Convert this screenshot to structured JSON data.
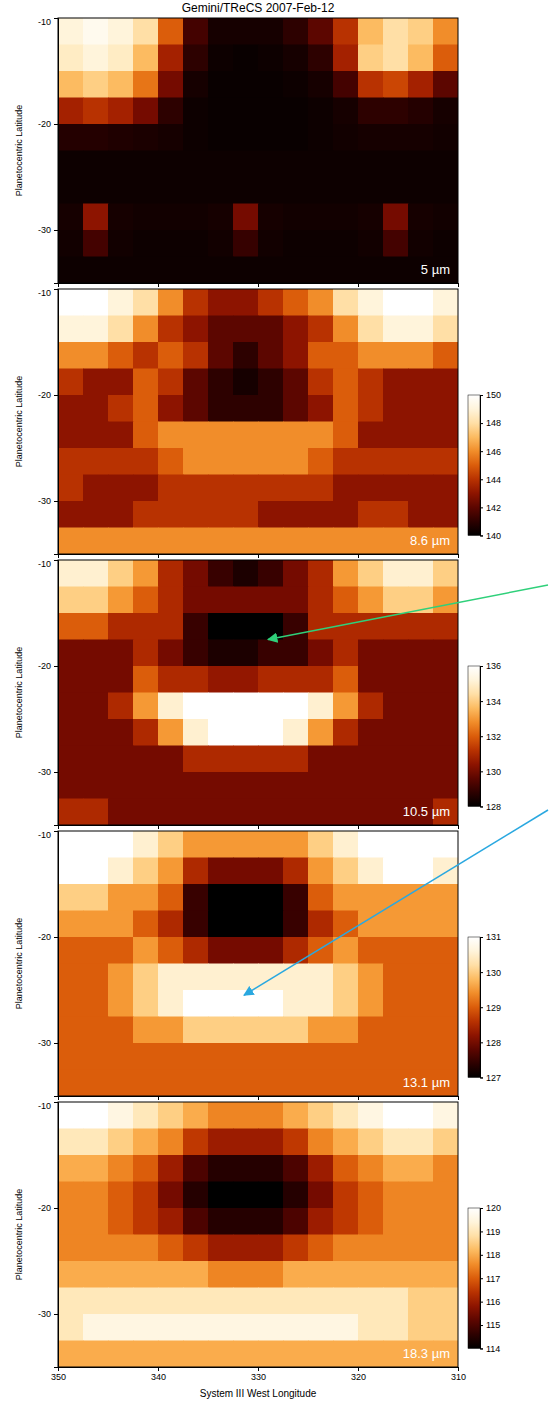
{
  "title": "Gemini/TReCS 2007-Feb-12",
  "chart_data": [
    {
      "type": "heatmap",
      "label": "5 µm",
      "ylabel": "Planetocentric Latitude",
      "x": [
        348.75,
        346.25,
        343.75,
        341.25,
        338.75,
        336.25,
        333.75,
        331.25,
        328.75,
        326.25,
        323.75,
        321.25,
        318.75,
        316.25,
        313.75,
        311.25
      ],
      "y": [
        -11.25,
        -13.75,
        -16.25,
        -18.75,
        -21.25,
        -23.75,
        -26.25,
        -28.75,
        -31.25,
        -33.75
      ],
      "xlim": [
        350,
        310
      ],
      "xticks": [
        350,
        340,
        330,
        320,
        310
      ],
      "ylim": [
        -35,
        -10
      ],
      "yticks": [
        -10,
        -20,
        -30
      ],
      "tick_labels": "y",
      "zlim": [
        0,
        1
      ],
      "z": [
        [
          0.9,
          0.95,
          0.9,
          0.8,
          0.5,
          0.15,
          0.05,
          0.05,
          0.05,
          0.1,
          0.2,
          0.4,
          0.7,
          0.8,
          0.75,
          0.6
        ],
        [
          0.85,
          0.9,
          0.85,
          0.7,
          0.35,
          0.1,
          0.03,
          0.02,
          0.03,
          0.05,
          0.1,
          0.35,
          0.75,
          0.8,
          0.7,
          0.5
        ],
        [
          0.7,
          0.75,
          0.7,
          0.55,
          0.25,
          0.05,
          0.02,
          0.02,
          0.02,
          0.03,
          0.05,
          0.15,
          0.4,
          0.45,
          0.35,
          0.2
        ],
        [
          0.35,
          0.4,
          0.35,
          0.25,
          0.1,
          0.03,
          0.02,
          0.02,
          0.02,
          0.02,
          0.03,
          0.05,
          0.1,
          0.1,
          0.08,
          0.05
        ],
        [
          0.08,
          0.08,
          0.07,
          0.06,
          0.05,
          0.03,
          0.02,
          0.02,
          0.02,
          0.02,
          0.03,
          0.04,
          0.05,
          0.05,
          0.05,
          0.04
        ],
        [
          0.03,
          0.03,
          0.03,
          0.03,
          0.03,
          0.03,
          0.03,
          0.03,
          0.03,
          0.03,
          0.03,
          0.03,
          0.03,
          0.03,
          0.03,
          0.03
        ],
        [
          0.03,
          0.03,
          0.03,
          0.03,
          0.03,
          0.03,
          0.03,
          0.03,
          0.03,
          0.03,
          0.03,
          0.03,
          0.03,
          0.03,
          0.03,
          0.03
        ],
        [
          0.05,
          0.3,
          0.05,
          0.04,
          0.04,
          0.04,
          0.05,
          0.25,
          0.05,
          0.04,
          0.04,
          0.04,
          0.05,
          0.25,
          0.05,
          0.04
        ],
        [
          0.04,
          0.15,
          0.04,
          0.03,
          0.03,
          0.03,
          0.04,
          0.12,
          0.04,
          0.03,
          0.03,
          0.03,
          0.04,
          0.15,
          0.04,
          0.03
        ],
        [
          0.03,
          0.03,
          0.03,
          0.03,
          0.03,
          0.03,
          0.03,
          0.03,
          0.03,
          0.03,
          0.03,
          0.03,
          0.03,
          0.03,
          0.03,
          0.03
        ]
      ]
    },
    {
      "type": "heatmap",
      "label": "8.6 µm",
      "ylabel": "Planetocentric Latitude",
      "x": [
        348.75,
        346.25,
        343.75,
        341.25,
        338.75,
        336.25,
        333.75,
        331.25,
        328.75,
        326.25,
        323.75,
        321.25,
        318.75,
        316.25,
        313.75,
        311.25
      ],
      "y": [
        -11.25,
        -13.75,
        -16.25,
        -18.75,
        -21.25,
        -23.75,
        -26.25,
        -28.75,
        -31.25,
        -33.75
      ],
      "xlim": [
        350,
        310
      ],
      "xticks": [
        350,
        340,
        330,
        320,
        310
      ],
      "ylim": [
        -35,
        -10
      ],
      "yticks": [
        -10,
        -20,
        -30
      ],
      "tick_labels": "y",
      "zlim": [
        140,
        150
      ],
      "zticks": [
        140,
        142,
        144,
        146,
        148,
        150
      ],
      "z": [
        [
          150,
          150,
          149,
          148,
          146,
          144,
          143,
          143,
          144,
          145,
          146,
          148,
          149,
          150,
          150,
          149
        ],
        [
          149,
          149,
          148,
          146,
          144,
          143,
          142,
          142,
          142,
          143,
          144,
          146,
          148,
          149,
          149,
          148
        ],
        [
          146,
          146,
          145,
          144,
          145,
          144,
          142,
          141,
          142,
          143,
          145,
          145,
          146,
          146,
          146,
          145
        ],
        [
          144,
          143,
          143,
          145,
          144,
          142,
          141,
          140.5,
          141,
          142,
          144,
          145,
          144,
          143,
          143,
          143
        ],
        [
          143,
          143,
          144,
          145,
          143,
          142,
          141,
          141,
          141,
          142,
          143,
          145,
          144,
          143,
          143,
          143
        ],
        [
          143,
          143,
          143,
          145,
          146,
          146,
          146,
          146,
          146,
          146,
          146,
          145,
          143,
          143,
          143,
          143
        ],
        [
          144,
          144,
          144,
          144,
          145,
          146,
          146,
          146,
          146,
          146,
          145,
          144,
          144,
          144,
          144,
          144
        ],
        [
          144,
          143,
          143,
          143,
          144,
          144,
          144,
          144,
          144,
          144,
          144,
          143,
          143,
          143,
          143,
          143
        ],
        [
          143,
          143,
          143,
          144,
          144,
          144,
          144,
          144,
          143,
          143,
          143,
          143,
          144,
          144,
          143,
          143
        ],
        [
          146,
          146,
          146,
          146,
          146,
          146,
          146,
          146,
          146,
          146,
          146,
          146,
          146,
          146,
          146,
          146
        ]
      ]
    },
    {
      "type": "heatmap",
      "label": "10.5 µm",
      "ylabel": "Planetocentric Latitude",
      "x": [
        348.75,
        346.25,
        343.75,
        341.25,
        338.75,
        336.25,
        333.75,
        331.25,
        328.75,
        326.25,
        323.75,
        321.25,
        318.75,
        316.25,
        313.75,
        311.25
      ],
      "y": [
        -11.25,
        -13.75,
        -16.25,
        -18.75,
        -21.25,
        -23.75,
        -26.25,
        -28.75,
        -31.25,
        -33.75
      ],
      "xlim": [
        350,
        310
      ],
      "xticks": [
        350,
        340,
        330,
        320,
        310
      ],
      "ylim": [
        -35,
        -10
      ],
      "yticks": [
        -10,
        -20,
        -30
      ],
      "tick_labels": "y",
      "zlim": [
        128,
        136
      ],
      "zticks": [
        128,
        130,
        132,
        134,
        136
      ],
      "z": [
        [
          135,
          135,
          134,
          133,
          131,
          130,
          129,
          128.5,
          129,
          130,
          131,
          133,
          134,
          135,
          135,
          134
        ],
        [
          134,
          134,
          133,
          132,
          131,
          130,
          130,
          130,
          130,
          130,
          131,
          132,
          133,
          134,
          134,
          133
        ],
        [
          132,
          132,
          131,
          131,
          131,
          129,
          128,
          128,
          128,
          129,
          131,
          131,
          131,
          131,
          131,
          131
        ],
        [
          130,
          130,
          130,
          131,
          130,
          129,
          128.5,
          128.5,
          129,
          129,
          130,
          131,
          130,
          130,
          130,
          130
        ],
        [
          130,
          130,
          130,
          132,
          131,
          131,
          130.5,
          130.5,
          131,
          131,
          131,
          132,
          130,
          130,
          130,
          130
        ],
        [
          130,
          130,
          131,
          133,
          135,
          136,
          136,
          136,
          136,
          136,
          135,
          133,
          131,
          130,
          130,
          130
        ],
        [
          130,
          130,
          130,
          131,
          133,
          135,
          136,
          136,
          136,
          135,
          133,
          131,
          130,
          130,
          130,
          130
        ],
        [
          130,
          130,
          130,
          130,
          130,
          131,
          131,
          131,
          131,
          131,
          130,
          130,
          130,
          130,
          130,
          130
        ],
        [
          130,
          130,
          130,
          130,
          130,
          130,
          130,
          130,
          130,
          130,
          130,
          130,
          130,
          130,
          130,
          130
        ],
        [
          131,
          131,
          130,
          130,
          130,
          130,
          130,
          130,
          130,
          130,
          130,
          130,
          130,
          130,
          130,
          131
        ]
      ]
    },
    {
      "type": "heatmap",
      "label": "13.1 µm",
      "ylabel": "Planetocentric Latitude",
      "x": [
        348.75,
        346.25,
        343.75,
        341.25,
        338.75,
        336.25,
        333.75,
        331.25,
        328.75,
        326.25,
        323.75,
        321.25,
        318.75,
        316.25,
        313.75,
        311.25
      ],
      "y": [
        -11.25,
        -13.75,
        -16.25,
        -18.75,
        -21.25,
        -23.75,
        -26.25,
        -28.75,
        -31.25,
        -33.75
      ],
      "xlim": [
        350,
        310
      ],
      "xticks": [
        350,
        340,
        330,
        320,
        310
      ],
      "ylim": [
        -35,
        -10
      ],
      "yticks": [
        -10,
        -20,
        -30
      ],
      "tick_labels": "y",
      "zlim": [
        127,
        131
      ],
      "zticks": [
        127,
        128,
        129,
        130,
        131
      ],
      "z": [
        [
          131,
          131,
          131,
          130.5,
          130,
          129.5,
          129.5,
          129.5,
          129.5,
          129.5,
          130,
          130.5,
          131,
          131,
          131,
          131
        ],
        [
          131,
          131,
          130.5,
          130,
          129.5,
          128.5,
          128,
          128,
          128,
          128.5,
          129.5,
          130,
          130.5,
          131,
          131,
          130.5
        ],
        [
          130,
          130,
          129.5,
          129.5,
          129,
          127.5,
          127,
          127,
          127,
          127.5,
          129,
          129.5,
          129.5,
          129.5,
          129.5,
          129.5
        ],
        [
          129.5,
          129.5,
          129.5,
          129,
          128.5,
          127.5,
          127,
          127,
          127,
          127.5,
          128.5,
          129,
          129.5,
          129.5,
          129.5,
          129.5
        ],
        [
          129,
          129,
          129,
          129.5,
          129,
          128.5,
          128,
          128,
          128,
          128.5,
          129,
          129.5,
          129,
          129,
          129,
          129
        ],
        [
          129,
          129,
          129.5,
          130,
          130.5,
          130.5,
          130.5,
          130.5,
          130.5,
          130.5,
          130.5,
          130,
          129.5,
          129,
          129,
          129
        ],
        [
          129,
          129,
          129.5,
          130,
          130.5,
          131,
          131,
          131,
          131,
          130.5,
          130.5,
          130,
          129.5,
          129,
          129,
          129
        ],
        [
          129,
          129,
          129,
          129.5,
          129.5,
          130,
          130,
          130,
          130,
          130,
          129.5,
          129.5,
          129,
          129,
          129,
          129
        ],
        [
          129,
          129,
          129,
          129,
          129,
          129,
          129,
          129,
          129,
          129,
          129,
          129,
          129,
          129,
          129,
          129
        ],
        [
          129,
          129,
          129,
          129,
          129,
          129,
          129,
          129,
          129,
          129,
          129,
          129,
          129,
          129,
          129,
          129
        ]
      ]
    },
    {
      "type": "heatmap",
      "label": "18.3 µm",
      "ylabel": "Planetocentric Latitude",
      "xlabel": "System III West Longitude",
      "x": [
        348.75,
        346.25,
        343.75,
        341.25,
        338.75,
        336.25,
        333.75,
        331.25,
        328.75,
        326.25,
        323.75,
        321.25,
        318.75,
        316.25,
        313.75,
        311.25
      ],
      "y": [
        -11.25,
        -13.75,
        -16.25,
        -18.75,
        -21.25,
        -23.75,
        -26.25,
        -28.75,
        -31.25,
        -33.75
      ],
      "xlim": [
        350,
        310
      ],
      "xticks": [
        350,
        340,
        330,
        320,
        310
      ],
      "ylim": [
        -35,
        -10
      ],
      "yticks": [
        -10,
        -20,
        -30
      ],
      "zlim": [
        114,
        120
      ],
      "zticks": [
        114,
        115,
        116,
        117,
        118,
        119,
        120
      ],
      "z": [
        [
          120,
          120,
          119.5,
          119,
          118.5,
          118,
          117.5,
          117.5,
          117.5,
          118,
          118.5,
          119,
          119.5,
          120,
          120,
          119.5
        ],
        [
          119,
          119,
          118.5,
          118,
          117.5,
          116.5,
          116,
          116,
          116,
          116.5,
          117.5,
          118,
          118.5,
          119,
          119,
          118.5
        ],
        [
          118,
          118,
          117.5,
          117,
          116,
          115,
          114.5,
          114.5,
          114.5,
          115,
          116,
          117,
          117.5,
          118,
          118,
          117.5
        ],
        [
          117.5,
          117.5,
          117,
          116.5,
          115.5,
          114.5,
          114,
          114,
          114,
          114.5,
          115.5,
          116.5,
          117,
          117.5,
          117.5,
          117.5
        ],
        [
          117.5,
          117.5,
          117,
          116.5,
          116,
          115,
          114.5,
          114.5,
          114.5,
          115,
          116,
          116.5,
          117,
          117.5,
          117.5,
          117.5
        ],
        [
          117.5,
          117.5,
          117.5,
          117.5,
          117,
          116.5,
          116,
          116,
          116,
          116.5,
          117,
          117.5,
          117.5,
          117.5,
          117.5,
          117.5
        ],
        [
          118,
          118,
          118,
          118,
          118,
          118,
          117.5,
          117.5,
          117.5,
          118,
          118,
          118,
          118,
          118,
          118,
          118
        ],
        [
          119,
          119,
          119,
          119,
          119,
          119,
          119,
          119,
          119,
          119,
          119,
          119,
          119,
          119,
          118.5,
          118.5
        ],
        [
          119,
          119.5,
          119.5,
          119.5,
          119.5,
          119.5,
          119.5,
          119.5,
          119.5,
          119.5,
          119.5,
          119.5,
          119,
          119,
          118.5,
          118.5
        ],
        [
          118,
          118,
          118,
          118,
          118,
          118,
          118,
          118,
          118,
          118,
          118,
          118,
          118,
          118,
          118,
          118
        ]
      ]
    }
  ]
}
